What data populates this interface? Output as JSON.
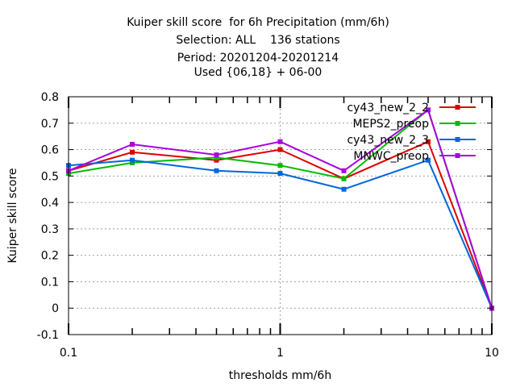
{
  "chart_data": {
    "type": "line",
    "title_lines": [
      "Kuiper skill score  for 6h Precipitation (mm/6h)",
      "Selection: ALL    136 stations",
      "Period: 20201204-20201214",
      "Used {06,18} + 06-00"
    ],
    "xlabel": "thresholds mm/6h",
    "ylabel": "Kuiper skill score",
    "x_scale": "log",
    "xlim": [
      0.1,
      10
    ],
    "ylim": [
      -0.1,
      0.8
    ],
    "x_ticks": [
      0.1,
      1,
      10
    ],
    "x_tick_labels": [
      "0.1",
      "1",
      "10"
    ],
    "y_ticks": [
      -0.1,
      0,
      0.1,
      0.2,
      0.3,
      0.4,
      0.5,
      0.6,
      0.7,
      0.8
    ],
    "y_tick_labels": [
      "-0.1",
      "0",
      "0.1",
      "0.2",
      "0.3",
      "0.4",
      "0.5",
      "0.6",
      "0.7",
      "0.8"
    ],
    "grid": true,
    "legend_position": "top-right",
    "x": [
      0.1,
      0.2,
      0.5,
      1,
      2,
      5,
      10
    ],
    "series": [
      {
        "name": "cy43_new_2_2",
        "color": "#dd0000",
        "values": [
          0.52,
          0.59,
          0.56,
          0.6,
          0.49,
          0.63,
          0.0
        ]
      },
      {
        "name": "MEPS2_preop",
        "color": "#00bb00",
        "values": [
          0.51,
          0.55,
          0.57,
          0.54,
          0.49,
          0.75,
          0.0
        ]
      },
      {
        "name": "cy43_new_2_3",
        "color": "#0066dd",
        "values": [
          0.54,
          0.56,
          0.52,
          0.51,
          0.45,
          0.56,
          0.0
        ]
      },
      {
        "name": "MNWC_preop",
        "color": "#aa00dd",
        "values": [
          0.52,
          0.62,
          0.58,
          0.63,
          0.52,
          0.75,
          0.0
        ]
      }
    ]
  }
}
